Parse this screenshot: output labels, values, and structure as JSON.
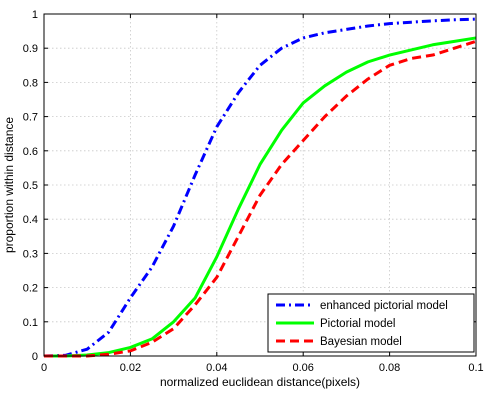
{
  "chart_data": {
    "type": "line",
    "title": "",
    "xlabel": "normalized euclidean distance(pixels)",
    "ylabel": "proportion within distance",
    "xlim": [
      0,
      0.1
    ],
    "ylim": [
      0,
      1
    ],
    "grid": true,
    "legend_position": "bottom-right",
    "x_ticks": [
      "0",
      "0.02",
      "0.04",
      "0.06",
      "0.08",
      "0.1"
    ],
    "y_ticks": [
      "0",
      "0.1",
      "0.2",
      "0.3",
      "0.4",
      "0.5",
      "0.6",
      "0.7",
      "0.8",
      "0.9",
      "1"
    ],
    "x": [
      0,
      0.005,
      0.01,
      0.015,
      0.02,
      0.025,
      0.03,
      0.035,
      0.04,
      0.045,
      0.05,
      0.055,
      0.06,
      0.065,
      0.07,
      0.075,
      0.08,
      0.085,
      0.09,
      0.095,
      0.1
    ],
    "series": [
      {
        "name": "enhanced pictorial model",
        "color": "#0000ff",
        "style": "dash-dot",
        "values": [
          0,
          0.002,
          0.02,
          0.07,
          0.17,
          0.26,
          0.38,
          0.53,
          0.67,
          0.77,
          0.85,
          0.9,
          0.93,
          0.945,
          0.955,
          0.965,
          0.972,
          0.976,
          0.98,
          0.983,
          0.985
        ]
      },
      {
        "name": "Pictorial model",
        "color": "#00ff00",
        "style": "solid",
        "values": [
          0,
          0,
          0.003,
          0.01,
          0.025,
          0.05,
          0.1,
          0.17,
          0.29,
          0.43,
          0.56,
          0.66,
          0.74,
          0.79,
          0.83,
          0.86,
          0.88,
          0.895,
          0.91,
          0.92,
          0.93
        ]
      },
      {
        "name": "Bayesian model",
        "color": "#ff0000",
        "style": "dashed",
        "values": [
          0,
          0,
          0,
          0.005,
          0.015,
          0.04,
          0.08,
          0.15,
          0.23,
          0.35,
          0.47,
          0.56,
          0.63,
          0.7,
          0.76,
          0.81,
          0.85,
          0.87,
          0.88,
          0.9,
          0.92
        ]
      }
    ]
  }
}
